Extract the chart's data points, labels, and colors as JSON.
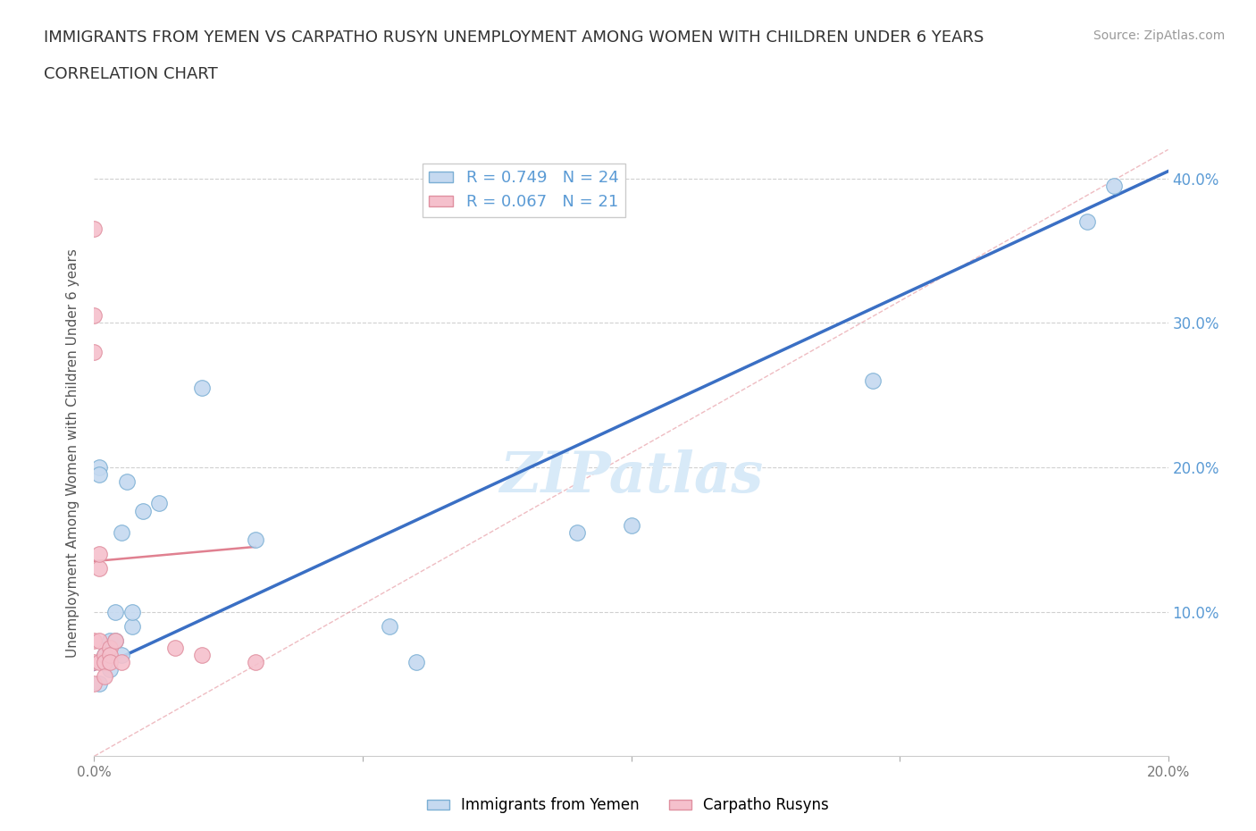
{
  "title_line1": "IMMIGRANTS FROM YEMEN VS CARPATHO RUSYN UNEMPLOYMENT AMONG WOMEN WITH CHILDREN UNDER 6 YEARS",
  "title_line2": "CORRELATION CHART",
  "source_text": "Source: ZipAtlas.com",
  "ylabel": "Unemployment Among Women with Children Under 6 years",
  "xlim": [
    0.0,
    0.2
  ],
  "ylim": [
    0.0,
    0.42
  ],
  "xticks": [
    0.0,
    0.05,
    0.1,
    0.15,
    0.2
  ],
  "yticks": [
    0.0,
    0.1,
    0.2,
    0.3,
    0.4
  ],
  "ytick_labels_right": [
    "",
    "10.0%",
    "20.0%",
    "30.0%",
    "40.0%"
  ],
  "xtick_labels": [
    "0.0%",
    "",
    "",
    "",
    "20.0%"
  ],
  "watermark": "ZIPatlas",
  "legend_blue_r": "R = 0.749",
  "legend_blue_n": "N = 24",
  "legend_pink_r": "R = 0.067",
  "legend_pink_n": "N = 21",
  "blue_scatter": [
    [
      0.001,
      0.05
    ],
    [
      0.002,
      0.07
    ],
    [
      0.003,
      0.06
    ],
    [
      0.003,
      0.08
    ],
    [
      0.004,
      0.08
    ],
    [
      0.004,
      0.1
    ],
    [
      0.005,
      0.07
    ],
    [
      0.005,
      0.155
    ],
    [
      0.006,
      0.19
    ],
    [
      0.007,
      0.09
    ],
    [
      0.007,
      0.1
    ],
    [
      0.009,
      0.17
    ],
    [
      0.012,
      0.175
    ],
    [
      0.02,
      0.255
    ],
    [
      0.03,
      0.15
    ],
    [
      0.055,
      0.09
    ],
    [
      0.09,
      0.155
    ],
    [
      0.1,
      0.16
    ],
    [
      0.145,
      0.26
    ],
    [
      0.185,
      0.37
    ],
    [
      0.19,
      0.395
    ],
    [
      0.001,
      0.2
    ],
    [
      0.001,
      0.195
    ],
    [
      0.06,
      0.065
    ]
  ],
  "pink_scatter": [
    [
      0.0,
      0.365
    ],
    [
      0.0,
      0.305
    ],
    [
      0.0,
      0.28
    ],
    [
      0.0,
      0.08
    ],
    [
      0.0,
      0.065
    ],
    [
      0.0,
      0.05
    ],
    [
      0.001,
      0.13
    ],
    [
      0.001,
      0.14
    ],
    [
      0.001,
      0.065
    ],
    [
      0.001,
      0.08
    ],
    [
      0.002,
      0.07
    ],
    [
      0.002,
      0.065
    ],
    [
      0.002,
      0.055
    ],
    [
      0.003,
      0.075
    ],
    [
      0.003,
      0.07
    ],
    [
      0.003,
      0.065
    ],
    [
      0.004,
      0.08
    ],
    [
      0.005,
      0.065
    ],
    [
      0.015,
      0.075
    ],
    [
      0.02,
      0.07
    ],
    [
      0.03,
      0.065
    ]
  ],
  "blue_line_x": [
    0.0,
    0.2
  ],
  "blue_line_y": [
    0.06,
    0.405
  ],
  "pink_line_x": [
    0.0,
    0.03
  ],
  "pink_line_y": [
    0.135,
    0.145
  ],
  "diag_line_x": [
    0.0,
    0.2
  ],
  "diag_line_y": [
    0.0,
    0.42
  ],
  "background_color": "#ffffff",
  "grid_color": "#d0d0d0",
  "title_color": "#333333",
  "axis_label_color": "#555555",
  "blue_face": "#c5d9f0",
  "blue_edge": "#7bafd4",
  "pink_face": "#f5c0cc",
  "pink_edge": "#e090a0",
  "blue_line_color": "#3a6fc4",
  "pink_line_color": "#e08090",
  "diag_line_color": "#e8a0a8",
  "right_tick_color": "#5b9bd5",
  "watermark_color": "#d8eaf8"
}
